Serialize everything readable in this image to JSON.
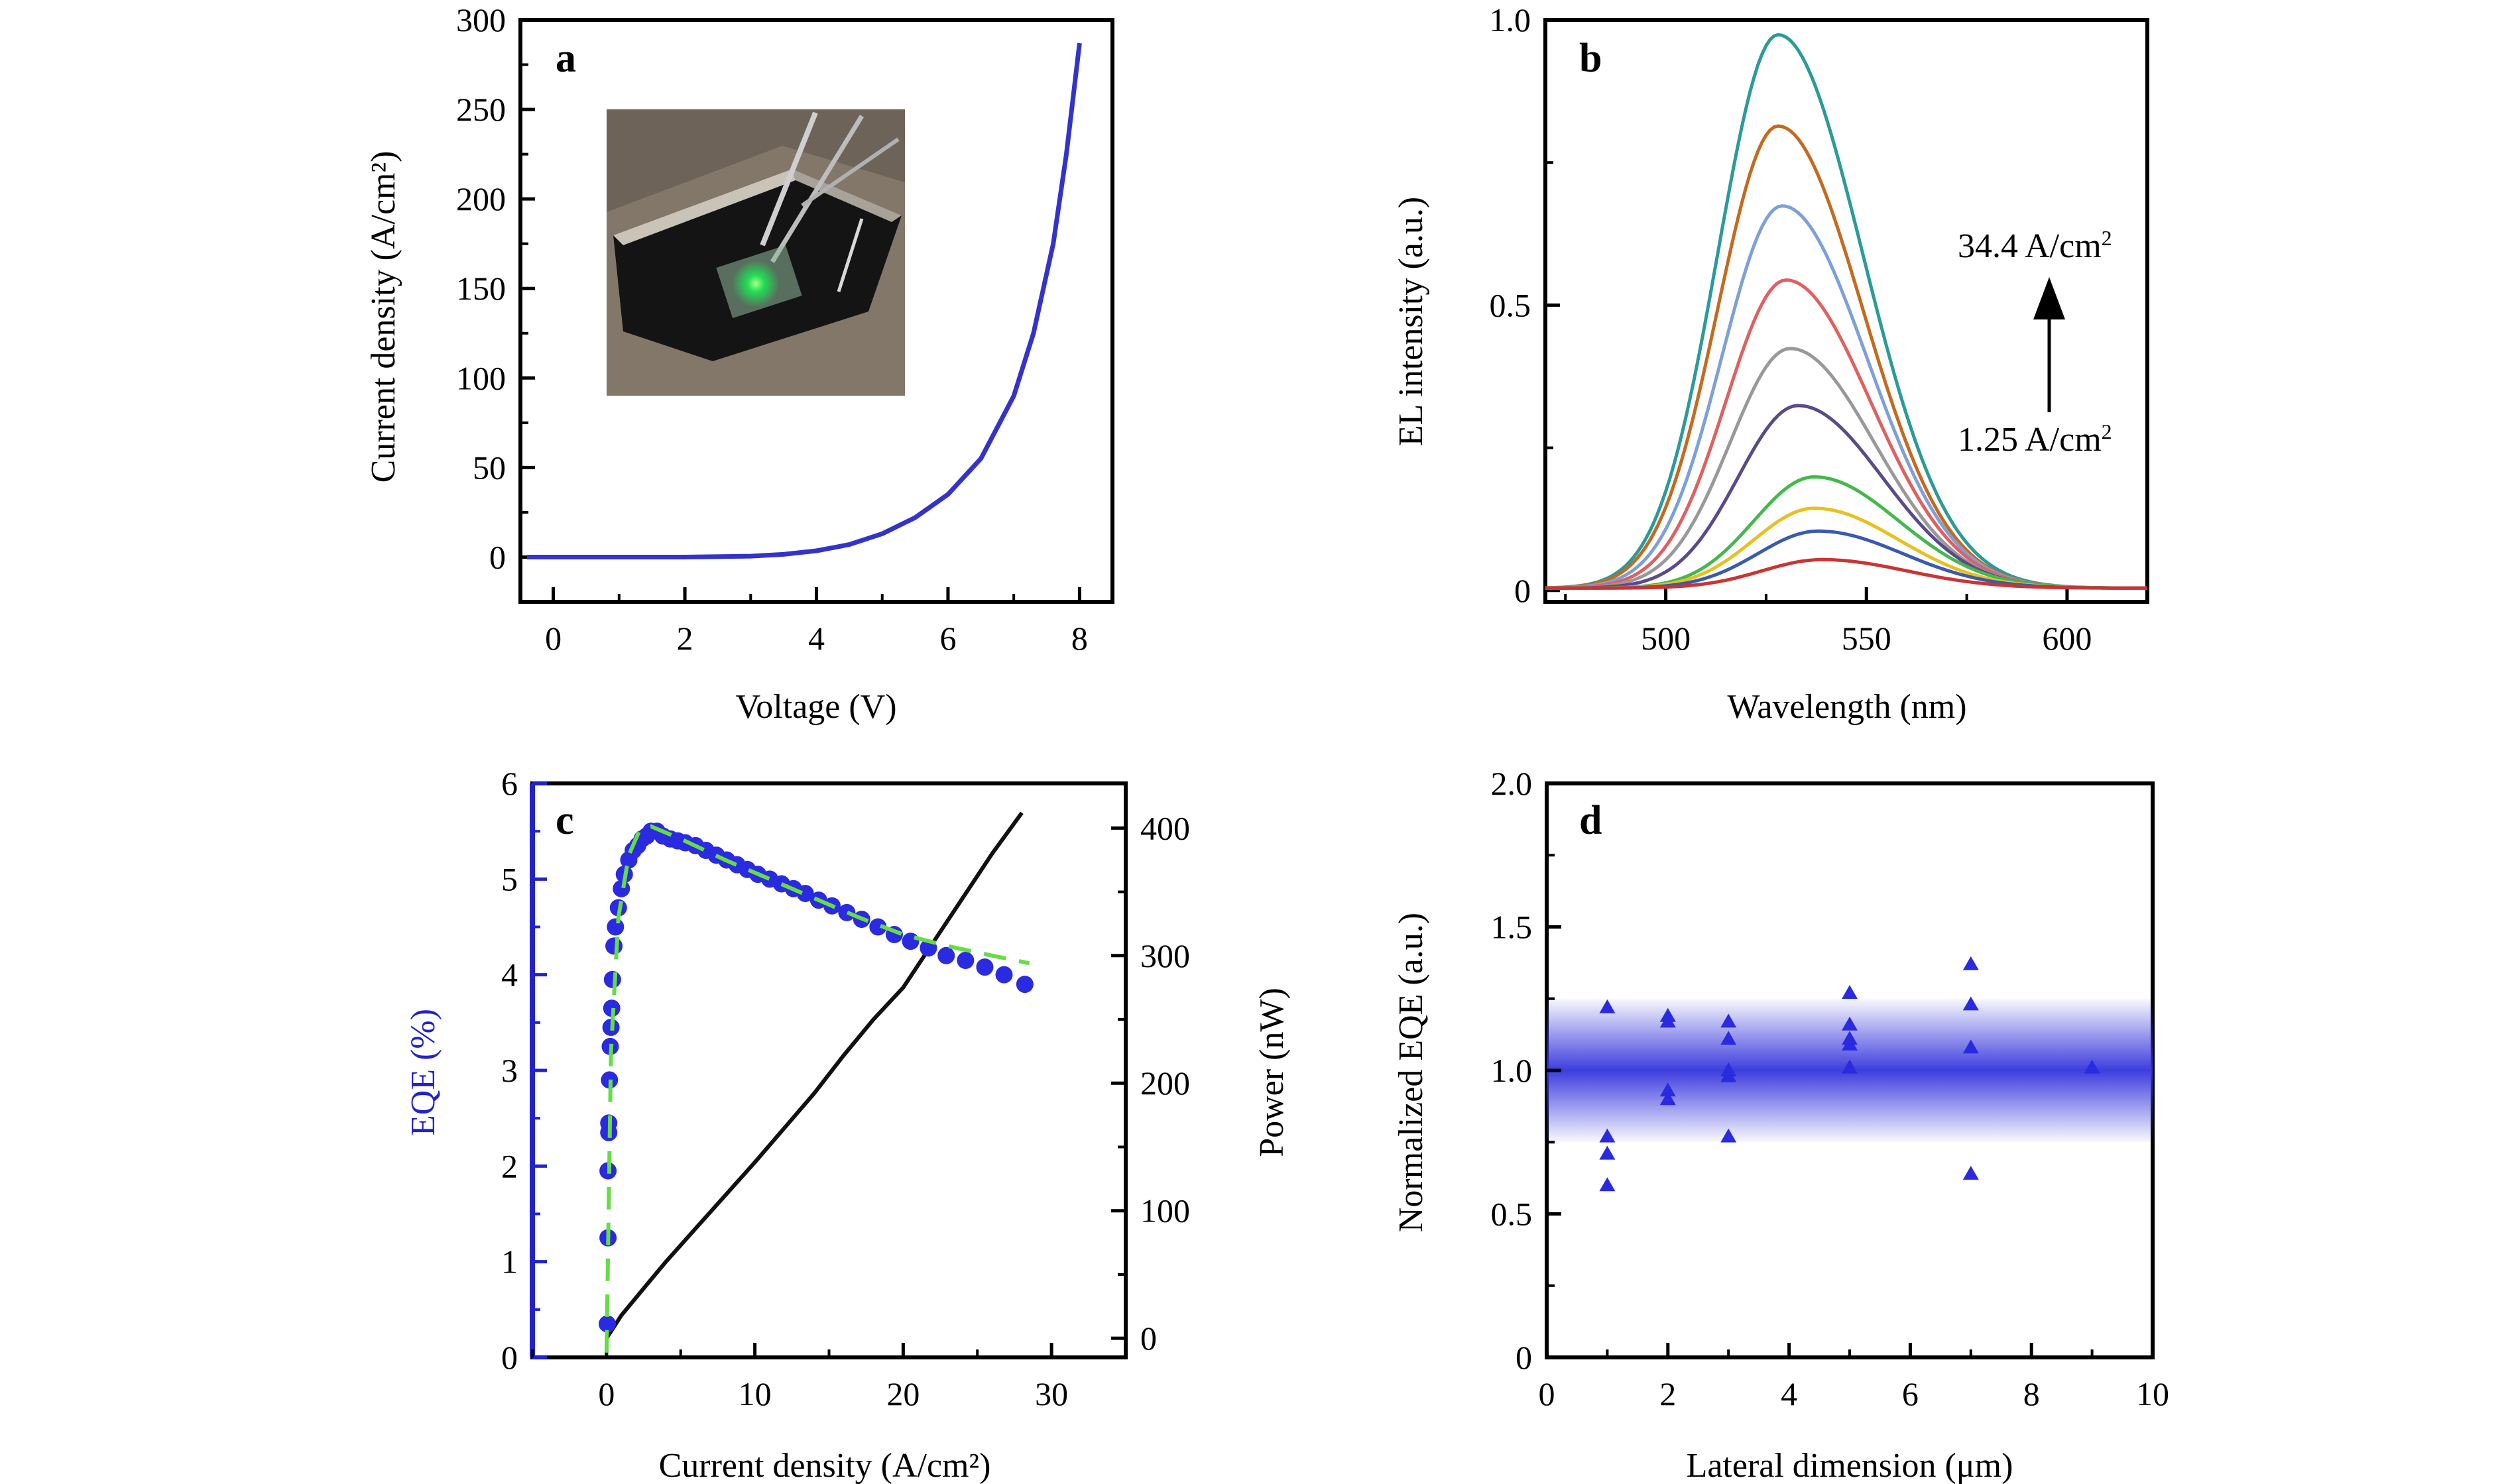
{
  "chart_data": [
    {
      "panel": "a",
      "type": "line",
      "xlabel": "Voltage (V)",
      "ylabel": "Current density (A/cm²)",
      "xlim": [
        -0.5,
        8.5
      ],
      "ylim": [
        -25,
        300
      ],
      "xticks": [
        0,
        2,
        4,
        6,
        8
      ],
      "xtick_labels": [
        "0",
        "2",
        "4",
        "6",
        "8"
      ],
      "yticks": [
        0,
        50,
        100,
        150,
        200,
        250,
        300
      ],
      "ytick_labels": [
        "0",
        "50",
        "100",
        "150",
        "200",
        "250",
        "300"
      ],
      "inset": "photograph of a green-emitting device under probe tips",
      "series": [
        {
          "color": "#3333cc",
          "x": [
            -0.4,
            1,
            2,
            3,
            3.5,
            4,
            4.5,
            5,
            5.5,
            6,
            6.5,
            7,
            7.3,
            7.6,
            7.8,
            8.0
          ],
          "y": [
            0,
            0,
            0,
            0.5,
            1.5,
            3.5,
            7,
            13,
            22,
            35,
            55,
            90,
            125,
            175,
            225,
            287
          ]
        }
      ]
    },
    {
      "panel": "b",
      "type": "line",
      "xlabel": "Wavelength (nm)",
      "ylabel": "EL intensity (a.u.)",
      "xlim": [
        470,
        620
      ],
      "ylim": [
        -0.02,
        1.0
      ],
      "xticks": [
        500,
        550,
        600
      ],
      "xtick_labels": [
        "500",
        "550",
        "600"
      ],
      "yticks": [
        0,
        0.5,
        1.0
      ],
      "ytick_labels": [
        "0",
        "0.5",
        "1.0"
      ],
      "annotations": {
        "top": "34.4 A/cm",
        "bottom": "1.25 A/cm",
        "sup": "2"
      },
      "series": [
        {
          "peak": 0.97,
          "center": 528,
          "color": "#2b9a9a"
        },
        {
          "peak": 0.81,
          "center": 528,
          "color": "#c46a1f"
        },
        {
          "peak": 0.67,
          "center": 529,
          "color": "#7ea0d8"
        },
        {
          "peak": 0.54,
          "center": 530,
          "color": "#e06060"
        },
        {
          "peak": 0.42,
          "center": 531,
          "color": "#999999"
        },
        {
          "peak": 0.32,
          "center": 533,
          "color": "#5a4a8a"
        },
        {
          "peak": 0.195,
          "center": 537,
          "color": "#44b84c"
        },
        {
          "peak": 0.14,
          "center": 537,
          "color": "#e8c020"
        },
        {
          "peak": 0.1,
          "center": 538,
          "color": "#3a5ab0"
        },
        {
          "peak": 0.05,
          "center": 539,
          "color": "#cc3333"
        }
      ]
    },
    {
      "panel": "c",
      "type": "scatter",
      "xlabel": "Current density (A/cm²)",
      "ylabel": "EQE (%)",
      "y2label": "Power (nW)",
      "xlim": [
        -5,
        35
      ],
      "ylim": [
        0,
        6
      ],
      "y2lim": [
        -15,
        435
      ],
      "xticks": [
        0,
        10,
        20,
        30
      ],
      "xtick_labels": [
        "0",
        "10",
        "20",
        "30"
      ],
      "yticks": [
        0,
        1,
        2,
        3,
        4,
        5,
        6
      ],
      "ytick_labels": [
        "0",
        "1",
        "2",
        "3",
        "4",
        "5",
        "6"
      ],
      "y2ticks": [
        0,
        100,
        200,
        300,
        400
      ],
      "y2tick_labels": [
        "0",
        "100",
        "200",
        "300",
        "400"
      ],
      "series": [
        {
          "kind": "eqe-points",
          "color": "#2a2ae0",
          "x": [
            0.05,
            0.1,
            0.1,
            0.15,
            0.15,
            0.2,
            0.25,
            0.3,
            0.35,
            0.4,
            0.5,
            0.6,
            0.8,
            1.0,
            1.2,
            1.5,
            1.8,
            2.1,
            2.4,
            2.7,
            3.0,
            3.4,
            3.8,
            4.3,
            4.8,
            5.3,
            6.0,
            6.7,
            7.4,
            8.1,
            8.8,
            9.5,
            10.2,
            11.0,
            11.8,
            12.6,
            13.4,
            14.3,
            15.2,
            16.2,
            17.2,
            18.3,
            19.4,
            20.5,
            21.7,
            22.9,
            24.2,
            25.5,
            26.8,
            28.2
          ],
          "y": [
            0.35,
            1.25,
            1.95,
            2.35,
            2.45,
            2.9,
            3.25,
            3.45,
            3.65,
            3.95,
            4.3,
            4.5,
            4.7,
            4.9,
            5.05,
            5.2,
            5.3,
            5.35,
            5.42,
            5.45,
            5.5,
            5.5,
            5.45,
            5.42,
            5.4,
            5.38,
            5.35,
            5.3,
            5.25,
            5.2,
            5.15,
            5.1,
            5.05,
            5.0,
            4.95,
            4.9,
            4.85,
            4.78,
            4.72,
            4.65,
            4.58,
            4.5,
            4.42,
            4.35,
            4.28,
            4.2,
            4.15,
            4.08,
            4.0,
            3.9
          ]
        },
        {
          "kind": "fit",
          "color": "#66dd44",
          "x": [
            0,
            0.3,
            0.8,
            1.5,
            2.2,
            3,
            5,
            8,
            11,
            14,
            17,
            20,
            23,
            26,
            28.5
          ],
          "y": [
            0.05,
            3.2,
            4.6,
            5.25,
            5.5,
            5.55,
            5.42,
            5.2,
            5.0,
            4.8,
            4.6,
            4.42,
            4.3,
            4.2,
            4.12
          ]
        },
        {
          "kind": "power",
          "axis": "y2",
          "color": "#111111",
          "x": [
            0,
            1,
            2,
            3,
            4,
            5,
            6,
            8,
            10,
            12,
            14,
            16,
            18,
            20,
            22,
            24,
            26,
            28
          ],
          "y": [
            0,
            18,
            32,
            46,
            60,
            73,
            86,
            112,
            138,
            165,
            192,
            222,
            250,
            275,
            310,
            345,
            380,
            412
          ]
        }
      ]
    },
    {
      "panel": "d",
      "type": "scatter",
      "xlabel": "Lateral dimension (μm)",
      "ylabel": "Normalized EQE (a.u.)",
      "xlim": [
        0,
        10
      ],
      "ylim": [
        0,
        2.0
      ],
      "xticks": [
        0,
        2,
        4,
        6,
        8,
        10
      ],
      "xtick_labels": [
        "0",
        "2",
        "4",
        "6",
        "8",
        "10"
      ],
      "yticks": [
        0,
        0.5,
        1.0,
        1.5,
        2.0
      ],
      "ytick_labels": [
        "0",
        "0.5",
        "1.0",
        "1.5",
        "2.0"
      ],
      "band": {
        "center": 1.0,
        "half_width": 0.25,
        "color": "#3333dd"
      },
      "series": [
        {
          "color": "#2a2ae0",
          "x": [
            1,
            1,
            1,
            1,
            2,
            2,
            2,
            2,
            3,
            3,
            3,
            3,
            3,
            5,
            5,
            5,
            5,
            5,
            7,
            7,
            7,
            7,
            9
          ],
          "y": [
            1.22,
            0.77,
            0.71,
            0.6,
            1.19,
            1.17,
            0.93,
            0.9,
            1.17,
            1.11,
            1.0,
            0.98,
            0.77,
            1.27,
            1.16,
            1.11,
            1.09,
            1.01,
            1.37,
            1.23,
            1.08,
            0.64,
            1.01
          ]
        }
      ]
    }
  ]
}
